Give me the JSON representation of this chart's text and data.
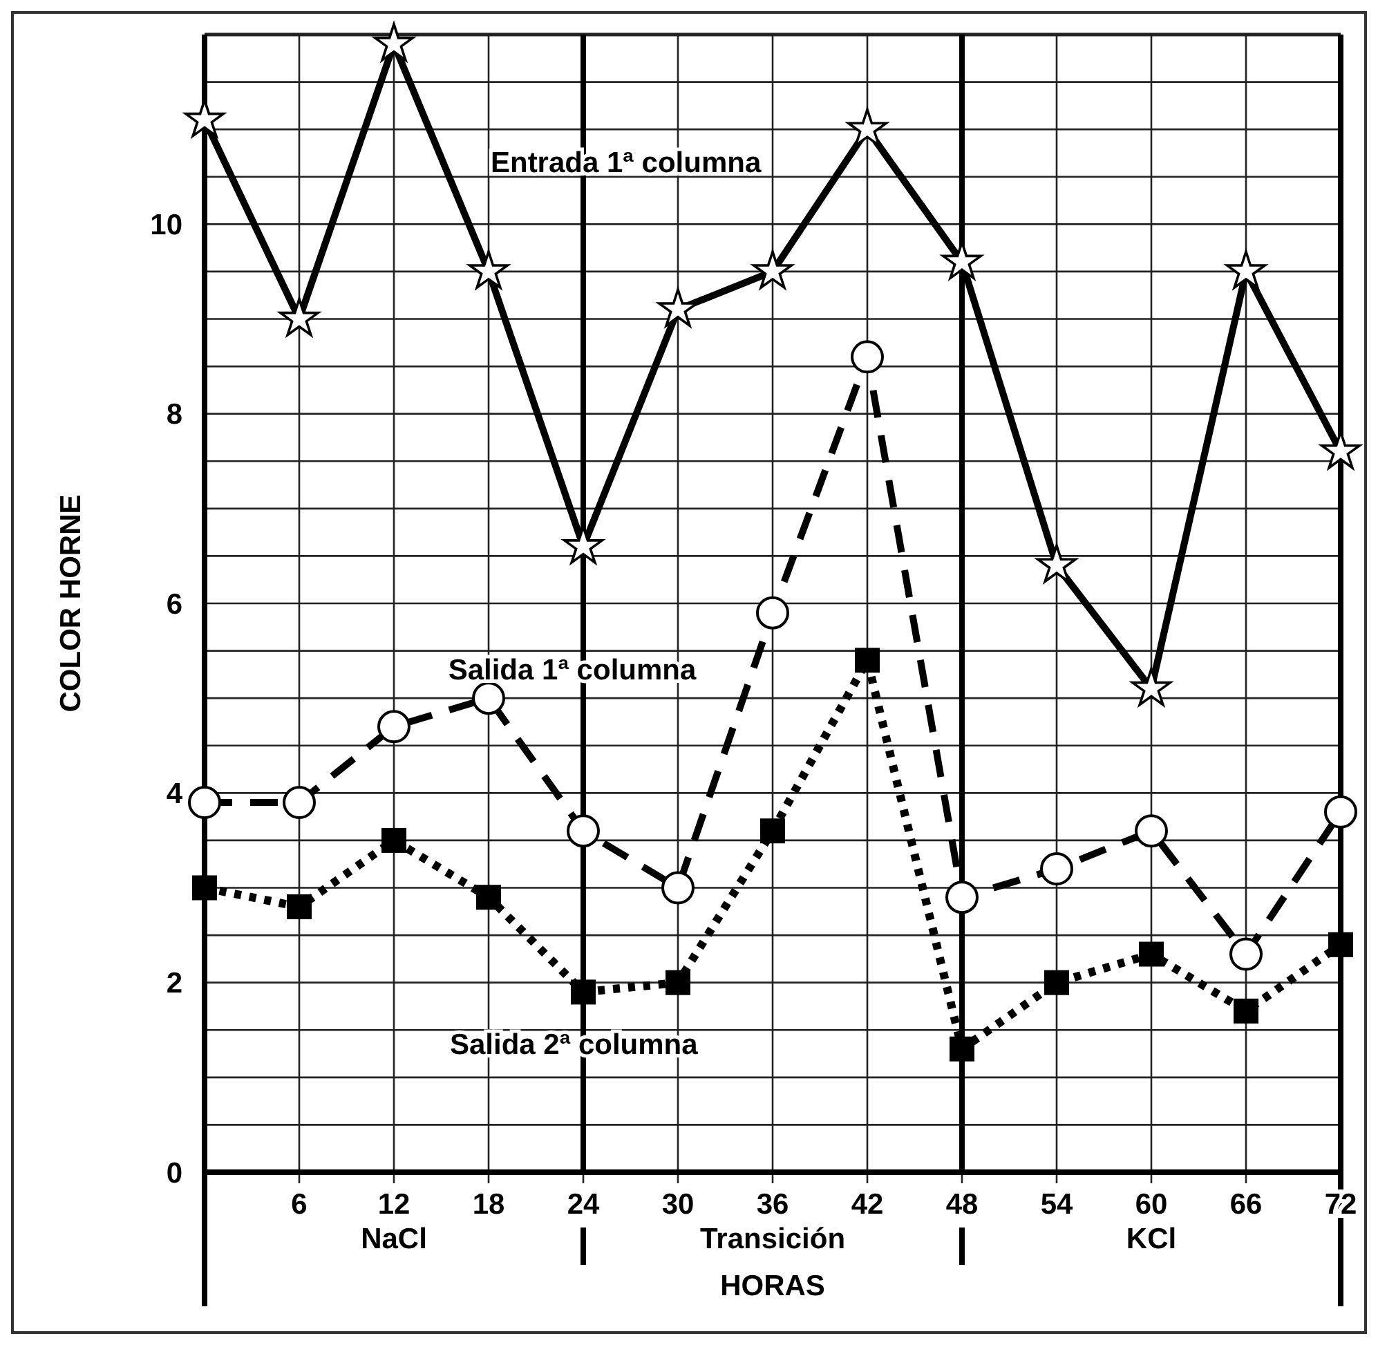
{
  "chart_data": {
    "type": "line",
    "xlabel": "HORAS",
    "ylabel": "COLOR HORNE",
    "x": [
      0,
      6,
      12,
      18,
      24,
      30,
      36,
      42,
      48,
      54,
      60,
      66,
      72
    ],
    "series": [
      {
        "name": "Entrada 1ª columna",
        "color": "#000000",
        "marker": "star",
        "line_style": "solid",
        "values": [
          11.1,
          9.0,
          11.9,
          9.5,
          6.6,
          9.1,
          9.5,
          11.0,
          9.6,
          6.4,
          5.1,
          9.5,
          7.6
        ]
      },
      {
        "name": "Salida 1ª columna",
        "color": "#000000",
        "marker": "circle",
        "line_style": "dashed",
        "values": [
          3.9,
          3.9,
          4.7,
          5.0,
          3.6,
          3.0,
          5.9,
          8.6,
          2.9,
          3.2,
          3.6,
          2.3,
          3.8
        ]
      },
      {
        "name": "Salida 2ª columna",
        "color": "#000000",
        "marker": "square",
        "line_style": "dotted",
        "values": [
          3.0,
          2.8,
          3.5,
          2.9,
          1.9,
          2.0,
          3.6,
          5.4,
          1.3,
          2.0,
          2.3,
          1.7,
          2.4
        ]
      }
    ],
    "xlim": [
      0,
      72
    ],
    "xticks": [
      {
        "value": 0,
        "label": null
      },
      6,
      12,
      18,
      24,
      30,
      36,
      42,
      48,
      54,
      60,
      66,
      72
    ],
    "ylim": [
      0,
      12
    ],
    "yticks": [
      0,
      {
        "value": 0.5,
        "label": null
      },
      {
        "value": 1,
        "label": null
      },
      {
        "value": 1.5,
        "label": null
      },
      2,
      {
        "value": 2.5,
        "label": null
      },
      {
        "value": 3,
        "label": null
      },
      {
        "value": 3.5,
        "label": null
      },
      4,
      {
        "value": 4.5,
        "label": null
      },
      {
        "value": 5,
        "label": null
      },
      {
        "value": 5.5,
        "label": null
      },
      6,
      {
        "value": 6.5,
        "label": null
      },
      {
        "value": 7,
        "label": null
      },
      {
        "value": 7.5,
        "label": null
      },
      8,
      {
        "value": 8.5,
        "label": null
      },
      {
        "value": 9,
        "label": null
      },
      {
        "value": 9.5,
        "label": null
      },
      10,
      {
        "value": 10.5,
        "label": null
      },
      {
        "value": 11,
        "label": null
      },
      {
        "value": 11.5,
        "label": null
      },
      {
        "value": 12,
        "label": null
      }
    ],
    "grid": true,
    "annotations": [
      "NaCl",
      "Transición",
      "KCl"
    ]
  }
}
